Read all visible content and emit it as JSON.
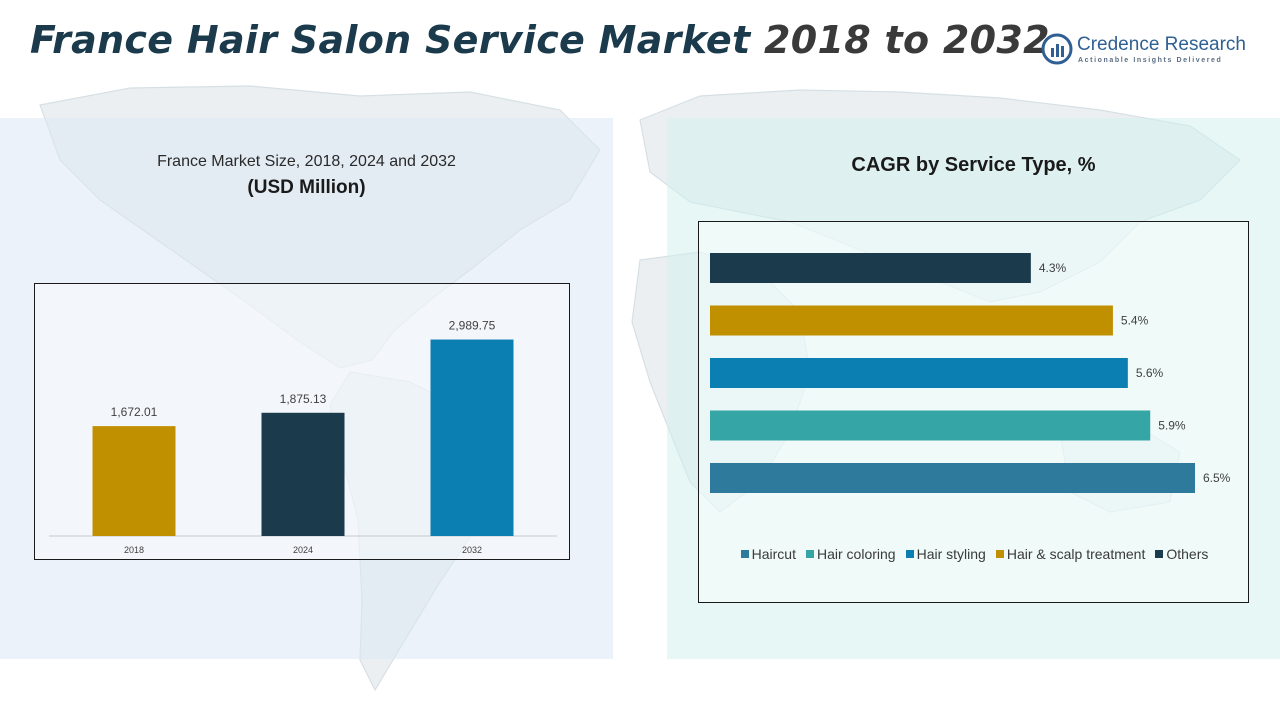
{
  "header": {
    "title_main": "France Hair Salon Service Market",
    "title_years": "2018 to 2032"
  },
  "brand": {
    "name": "Credence Research",
    "tagline": "Actionable Insights Delivered",
    "color": "#2f5f93"
  },
  "chart_data": [
    {
      "type": "bar",
      "title": "France Market Size, 2018, 2024 and 2032",
      "subtitle": "(USD Million)",
      "categories": [
        "2018",
        "2024",
        "2032"
      ],
      "values": [
        1672.01,
        1875.13,
        2989.75
      ],
      "value_labels": [
        "1,672.01",
        "1,875.13",
        "2,989.75"
      ],
      "colors": [
        "#c09000",
        "#1b3a4b",
        "#0b7fb1"
      ],
      "ylim": [
        0,
        3500
      ],
      "grid": false,
      "legend": "none"
    },
    {
      "type": "bar",
      "orientation": "horizontal",
      "title": "CAGR by Service Type, %",
      "categories": [
        "Others",
        "Hair & scalp treatment",
        "Hair styling",
        "Hair coloring",
        "Haircut"
      ],
      "values": [
        4.3,
        5.4,
        5.6,
        5.9,
        6.5
      ],
      "value_labels": [
        "4.3%",
        "5.4%",
        "5.6%",
        "5.9%",
        "6.5%"
      ],
      "colors": [
        "#1b3a4b",
        "#c09000",
        "#0b7fb1",
        "#35a5a5",
        "#2e7a9c"
      ],
      "xlim": [
        0,
        6.5
      ],
      "grid": false,
      "legend": "bottom",
      "legend_items": [
        {
          "label": "Haircut",
          "color": "#2e7a9c"
        },
        {
          "label": "Hair coloring",
          "color": "#35a5a5"
        },
        {
          "label": "Hair styling",
          "color": "#0b7fb1"
        },
        {
          "label": "Hair & scalp treatment",
          "color": "#c09000"
        },
        {
          "label": "Others",
          "color": "#1b3a4b"
        }
      ]
    }
  ]
}
